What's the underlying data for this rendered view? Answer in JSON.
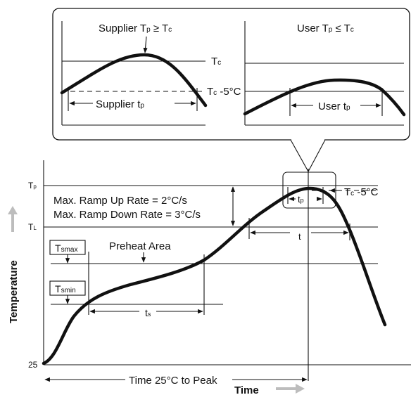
{
  "inset": {
    "left_panel": {
      "title_main": "Supplier T",
      "title_sub": "p",
      "title_rest": " ≥ T",
      "title_sub2": "c",
      "line_tc_main": "T",
      "line_tc_sub": "c",
      "line_tc5_main": "T",
      "line_tc5_sub": "c",
      "line_tc5_rest": " -5°C",
      "span_main": "Supplier t",
      "span_sub": "p"
    },
    "right_panel": {
      "title_main": "User T",
      "title_sub": "p",
      "title_rest": "  ≤ T",
      "title_sub2": "c",
      "span_main": "User t",
      "span_sub": "p"
    }
  },
  "main": {
    "y_label": "Temperature",
    "x_label": "Time",
    "tick_tp_main": "T",
    "tick_tp_sub": "p",
    "tick_tl_main": "T",
    "tick_tl_sub": "L",
    "tick_25": "25",
    "ramp_up": "Max. Ramp Up Rate = 2°C/s",
    "ramp_down": "Max. Ramp Down Rate = 3°C/s",
    "preheat": "Preheat Area",
    "tsmax_main": "T",
    "tsmax_sub": "smax",
    "tsmin_main": "T",
    "tsmin_sub": "smin",
    "ts_main": "t",
    "ts_sub": "s",
    "t_label": "t",
    "tp_main": "t",
    "tp_sub": "p",
    "tc5_main": "T",
    "tc5_sub": "c",
    "tc5_rest": " -5°C",
    "time_to_peak": "Time 25°C to Peak"
  },
  "colors": {
    "line": "#111111",
    "arrow_gray": "#bdbdbd",
    "background": "#ffffff"
  }
}
